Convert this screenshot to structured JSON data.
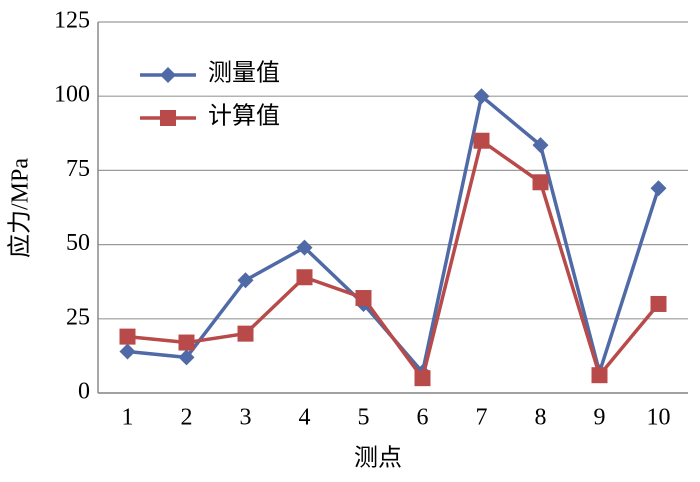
{
  "chart_data": {
    "type": "line",
    "x_label": "测点",
    "y_label": "应力/MPa",
    "categories": [
      "1",
      "2",
      "3",
      "4",
      "5",
      "6",
      "7",
      "8",
      "9",
      "10"
    ],
    "series": [
      {
        "name": "测量值",
        "color": "#4f6aa6",
        "marker": "diamond",
        "values": [
          14,
          12,
          38,
          49,
          30,
          7,
          100,
          83.5,
          7,
          69
        ]
      },
      {
        "name": "计算值",
        "color": "#b84a4a",
        "marker": "square",
        "values": [
          19,
          17,
          20,
          39,
          32,
          5,
          85,
          71,
          6,
          30
        ]
      }
    ],
    "ylim": [
      0,
      125
    ],
    "yticks": [
      0,
      25,
      50,
      75,
      100,
      125
    ],
    "grid": true,
    "legend": "upper left"
  }
}
